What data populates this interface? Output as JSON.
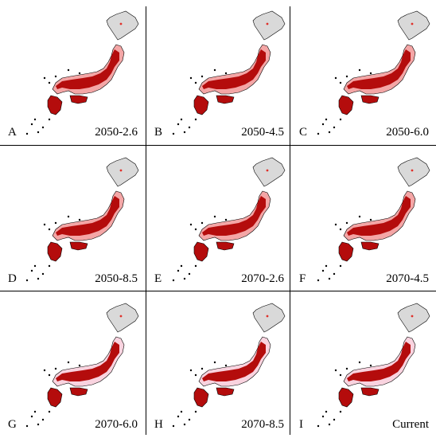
{
  "colors": {
    "land_background": "#d9d9d9",
    "suitability_high": "#b40c0c",
    "suitability_mid": "#e0302a",
    "suitability_low": "#f4a6a6",
    "suitability_fringe": "#f9d3df",
    "coastline": "#000000",
    "divider": "#000000"
  },
  "panels": [
    {
      "letter": "A",
      "scenario": "2050-2.6"
    },
    {
      "letter": "B",
      "scenario": "2050-4.5"
    },
    {
      "letter": "C",
      "scenario": "2050-6.0"
    },
    {
      "letter": "D",
      "scenario": "2050-8.5"
    },
    {
      "letter": "E",
      "scenario": "2070-2.6"
    },
    {
      "letter": "F",
      "scenario": "2070-4.5"
    },
    {
      "letter": "G",
      "scenario": "2070-6.0"
    },
    {
      "letter": "H",
      "scenario": "2070-8.5"
    },
    {
      "letter": "I",
      "scenario": "Current"
    }
  ]
}
